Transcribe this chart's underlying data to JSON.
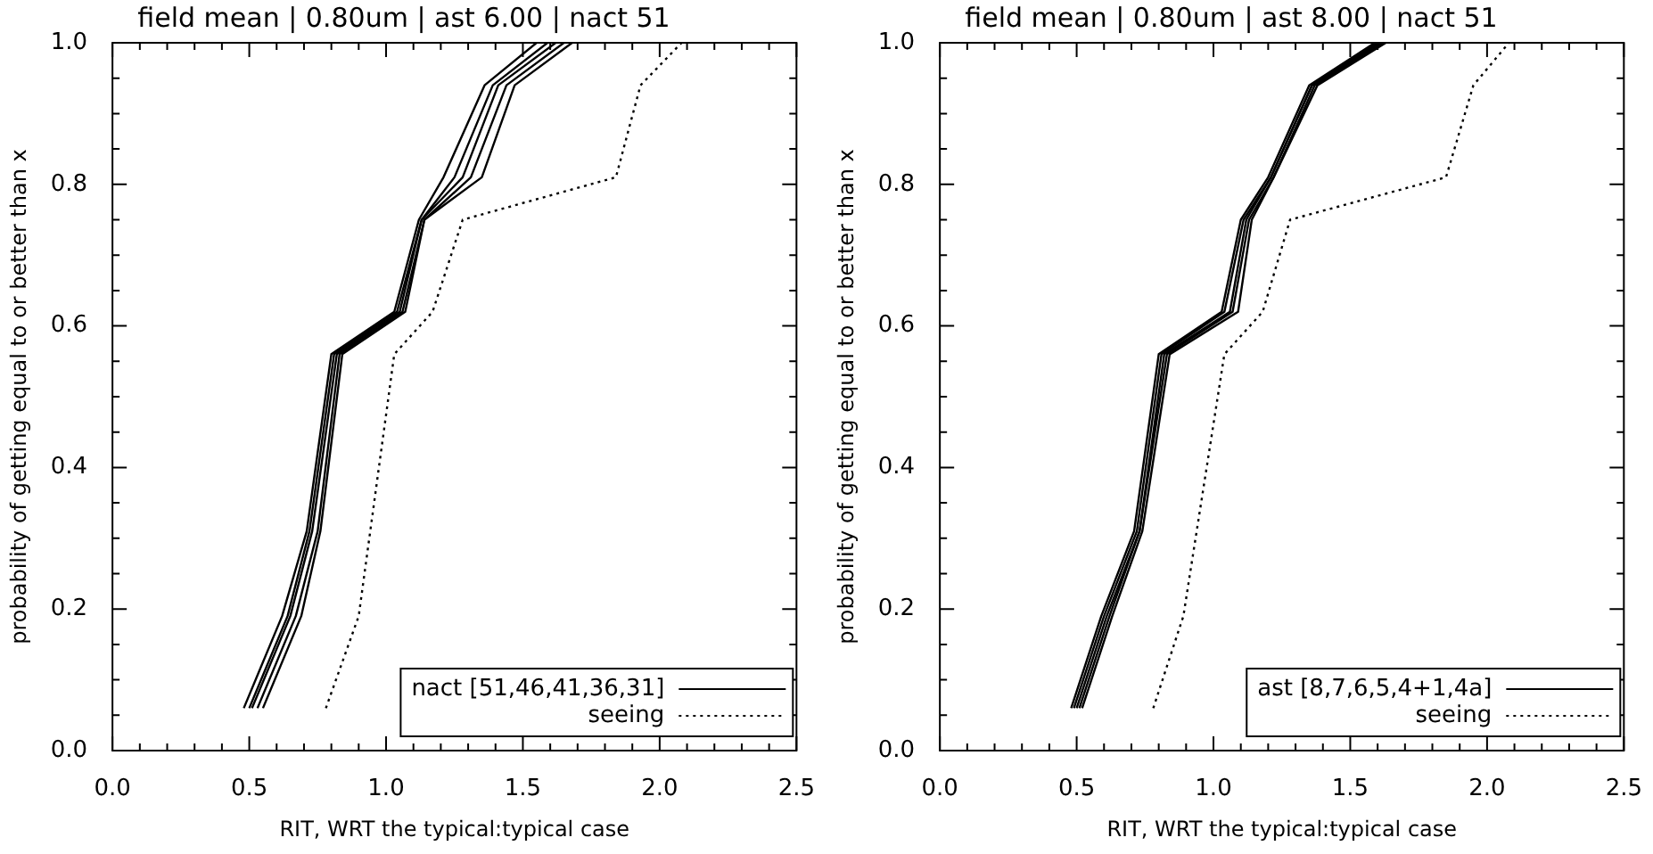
{
  "chart_data": [
    {
      "type": "line",
      "title": "field mean | 0.80um | ast 6.00 | nact 51",
      "xlabel": "RIT, WRT the typical:typical case",
      "ylabel": "probability of getting equal to or better than x",
      "xlim": [
        0,
        2.5
      ],
      "ylim": [
        0,
        1
      ],
      "xticks": [
        {
          "value": 0,
          "label": "0.0"
        },
        {
          "value": 0.1,
          "label": null
        },
        {
          "value": 0.2,
          "label": null
        },
        {
          "value": 0.3,
          "label": null
        },
        {
          "value": 0.4,
          "label": null
        },
        {
          "value": 0.5,
          "label": "0.5"
        },
        {
          "value": 0.6,
          "label": null
        },
        {
          "value": 0.7,
          "label": null
        },
        {
          "value": 0.8,
          "label": null
        },
        {
          "value": 0.9,
          "label": null
        },
        {
          "value": 1,
          "label": "1.0"
        },
        {
          "value": 1.1,
          "label": null
        },
        {
          "value": 1.2,
          "label": null
        },
        {
          "value": 1.3,
          "label": null
        },
        {
          "value": 1.4,
          "label": null
        },
        {
          "value": 1.5,
          "label": "1.5"
        },
        {
          "value": 1.6,
          "label": null
        },
        {
          "value": 1.7,
          "label": null
        },
        {
          "value": 1.8,
          "label": null
        },
        {
          "value": 1.9,
          "label": null
        },
        {
          "value": 2,
          "label": "2.0"
        },
        {
          "value": 2.1,
          "label": null
        },
        {
          "value": 2.2,
          "label": null
        },
        {
          "value": 2.3,
          "label": null
        },
        {
          "value": 2.4,
          "label": null
        },
        {
          "value": 2.5,
          "label": "2.5"
        }
      ],
      "yticks": [
        {
          "value": 0,
          "label": "0.0"
        },
        {
          "value": 0.05,
          "label": null
        },
        {
          "value": 0.1,
          "label": null
        },
        {
          "value": 0.15,
          "label": null
        },
        {
          "value": 0.2,
          "label": "0.2"
        },
        {
          "value": 0.25,
          "label": null
        },
        {
          "value": 0.3,
          "label": null
        },
        {
          "value": 0.35,
          "label": null
        },
        {
          "value": 0.4,
          "label": "0.4"
        },
        {
          "value": 0.45,
          "label": null
        },
        {
          "value": 0.5,
          "label": null
        },
        {
          "value": 0.55,
          "label": null
        },
        {
          "value": 0.6,
          "label": "0.6"
        },
        {
          "value": 0.65,
          "label": null
        },
        {
          "value": 0.7,
          "label": null
        },
        {
          "value": 0.75,
          "label": null
        },
        {
          "value": 0.8,
          "label": "0.8"
        },
        {
          "value": 0.85,
          "label": null
        },
        {
          "value": 0.9,
          "label": null
        },
        {
          "value": 0.95,
          "label": null
        },
        {
          "value": 1,
          "label": "1.0"
        }
      ],
      "grid": false,
      "legend": "bottom right",
      "marker": "none",
      "series": [
        {
          "name": "nact [51,46,41,36,31]",
          "color": "#000000",
          "x": [
            0.48,
            0.62,
            0.71,
            0.8,
            1.03,
            1.12,
            1.21,
            1.36,
            1.55
          ],
          "values": [
            0.06,
            0.19,
            0.31,
            0.56,
            0.62,
            0.75,
            0.81,
            0.94,
            1.0
          ]
        },
        {
          "color": "#000000",
          "x": [
            0.5,
            0.64,
            0.72,
            0.81,
            1.04,
            1.13,
            1.25,
            1.39,
            1.59
          ],
          "values": [
            0.06,
            0.19,
            0.31,
            0.56,
            0.62,
            0.75,
            0.81,
            0.94,
            1.0
          ]
        },
        {
          "color": "#000000",
          "x": [
            0.51,
            0.65,
            0.73,
            0.82,
            1.05,
            1.13,
            1.28,
            1.41,
            1.62
          ],
          "values": [
            0.06,
            0.19,
            0.31,
            0.56,
            0.62,
            0.75,
            0.81,
            0.94,
            1.0
          ]
        },
        {
          "color": "#000000",
          "x": [
            0.53,
            0.67,
            0.75,
            0.83,
            1.06,
            1.14,
            1.31,
            1.44,
            1.65
          ],
          "values": [
            0.06,
            0.19,
            0.31,
            0.56,
            0.62,
            0.75,
            0.81,
            0.94,
            1.0
          ]
        },
        {
          "color": "#000000",
          "x": [
            0.55,
            0.69,
            0.76,
            0.84,
            1.07,
            1.14,
            1.35,
            1.47,
            1.68
          ],
          "values": [
            0.06,
            0.19,
            0.31,
            0.56,
            0.62,
            0.75,
            0.81,
            0.94,
            1.0
          ]
        },
        {
          "name": "seeing",
          "color": "#000000",
          "line_style": "dotted",
          "x": [
            0.78,
            0.9,
            1.03,
            1.17,
            1.28,
            1.84,
            1.93,
            2.08
          ],
          "values": [
            0.06,
            0.19,
            0.56,
            0.62,
            0.75,
            0.81,
            0.94,
            1.0
          ]
        }
      ]
    },
    {
      "type": "line",
      "title": "field mean | 0.80um | ast 8.00 | nact 51",
      "xlabel": "RIT, WRT the typical:typical case",
      "ylabel": "probability of getting equal to or better than x",
      "xlim": [
        0,
        2.5
      ],
      "ylim": [
        0,
        1
      ],
      "xticks": [
        {
          "value": 0,
          "label": "0.0"
        },
        {
          "value": 0.1,
          "label": null
        },
        {
          "value": 0.2,
          "label": null
        },
        {
          "value": 0.3,
          "label": null
        },
        {
          "value": 0.4,
          "label": null
        },
        {
          "value": 0.5,
          "label": "0.5"
        },
        {
          "value": 0.6,
          "label": null
        },
        {
          "value": 0.7,
          "label": null
        },
        {
          "value": 0.8,
          "label": null
        },
        {
          "value": 0.9,
          "label": null
        },
        {
          "value": 1,
          "label": "1.0"
        },
        {
          "value": 1.1,
          "label": null
        },
        {
          "value": 1.2,
          "label": null
        },
        {
          "value": 1.3,
          "label": null
        },
        {
          "value": 1.4,
          "label": null
        },
        {
          "value": 1.5,
          "label": "1.5"
        },
        {
          "value": 1.6,
          "label": null
        },
        {
          "value": 1.7,
          "label": null
        },
        {
          "value": 1.8,
          "label": null
        },
        {
          "value": 1.9,
          "label": null
        },
        {
          "value": 2,
          "label": "2.0"
        },
        {
          "value": 2.1,
          "label": null
        },
        {
          "value": 2.2,
          "label": null
        },
        {
          "value": 2.3,
          "label": null
        },
        {
          "value": 2.4,
          "label": null
        },
        {
          "value": 2.5,
          "label": "2.5"
        }
      ],
      "yticks": [
        {
          "value": 0,
          "label": "0.0"
        },
        {
          "value": 0.05,
          "label": null
        },
        {
          "value": 0.1,
          "label": null
        },
        {
          "value": 0.15,
          "label": null
        },
        {
          "value": 0.2,
          "label": "0.2"
        },
        {
          "value": 0.25,
          "label": null
        },
        {
          "value": 0.3,
          "label": null
        },
        {
          "value": 0.35,
          "label": null
        },
        {
          "value": 0.4,
          "label": "0.4"
        },
        {
          "value": 0.45,
          "label": null
        },
        {
          "value": 0.5,
          "label": null
        },
        {
          "value": 0.55,
          "label": null
        },
        {
          "value": 0.6,
          "label": "0.6"
        },
        {
          "value": 0.65,
          "label": null
        },
        {
          "value": 0.7,
          "label": null
        },
        {
          "value": 0.75,
          "label": null
        },
        {
          "value": 0.8,
          "label": "0.8"
        },
        {
          "value": 0.85,
          "label": null
        },
        {
          "value": 0.9,
          "label": null
        },
        {
          "value": 0.95,
          "label": null
        },
        {
          "value": 1,
          "label": "1.0"
        }
      ],
      "grid": false,
      "legend": "bottom right",
      "marker": "none",
      "series": [
        {
          "name": "ast [8,7,6,5,4+1,4a]",
          "color": "#000000",
          "x": [
            0.48,
            0.59,
            0.71,
            0.8,
            1.03,
            1.1,
            1.2,
            1.35,
            1.59
          ],
          "values": [
            0.06,
            0.19,
            0.31,
            0.56,
            0.62,
            0.75,
            0.81,
            0.94,
            1.0
          ]
        },
        {
          "color": "#000000",
          "x": [
            0.49,
            0.6,
            0.72,
            0.81,
            1.04,
            1.11,
            1.21,
            1.36,
            1.6
          ],
          "values": [
            0.06,
            0.19,
            0.31,
            0.56,
            0.62,
            0.75,
            0.81,
            0.94,
            1.0
          ]
        },
        {
          "color": "#000000",
          "x": [
            0.5,
            0.61,
            0.73,
            0.82,
            1.06,
            1.12,
            1.21,
            1.36,
            1.61
          ],
          "values": [
            0.06,
            0.19,
            0.31,
            0.56,
            0.62,
            0.75,
            0.81,
            0.94,
            1.0
          ]
        },
        {
          "color": "#000000",
          "x": [
            0.51,
            0.62,
            0.73,
            0.83,
            1.07,
            1.13,
            1.22,
            1.37,
            1.62
          ],
          "values": [
            0.06,
            0.19,
            0.31,
            0.56,
            0.62,
            0.75,
            0.81,
            0.94,
            1.0
          ]
        },
        {
          "color": "#000000",
          "x": [
            0.52,
            0.63,
            0.74,
            0.84,
            1.09,
            1.14,
            1.22,
            1.38,
            1.63
          ],
          "values": [
            0.06,
            0.19,
            0.31,
            0.56,
            0.62,
            0.75,
            0.81,
            0.94,
            1.0
          ]
        },
        {
          "name": "seeing",
          "color": "#000000",
          "line_style": "dotted",
          "x": [
            0.78,
            0.89,
            1.04,
            1.18,
            1.28,
            1.85,
            1.95,
            2.08
          ],
          "values": [
            0.06,
            0.19,
            0.56,
            0.62,
            0.75,
            0.81,
            0.94,
            1.0
          ]
        }
      ]
    }
  ]
}
